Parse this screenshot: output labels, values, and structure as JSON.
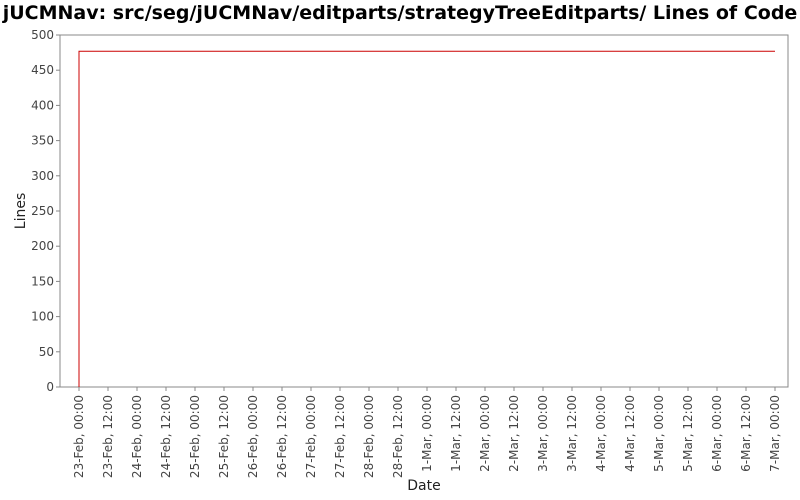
{
  "chart_data": {
    "type": "line",
    "title": "jUCMNav: src/seg/jUCMNav/editparts/strategyTreeEditparts/ Lines of Code",
    "xlabel": "Date",
    "ylabel": "Lines",
    "ylim": [
      0,
      500
    ],
    "yticks": [
      0,
      50,
      100,
      150,
      200,
      250,
      300,
      350,
      400,
      450,
      500
    ],
    "xticks": [
      "23-Feb, 00:00",
      "23-Feb, 12:00",
      "24-Feb, 00:00",
      "24-Feb, 12:00",
      "25-Feb, 00:00",
      "25-Feb, 12:00",
      "26-Feb, 00:00",
      "26-Feb, 12:00",
      "27-Feb, 00:00",
      "27-Feb, 12:00",
      "28-Feb, 00:00",
      "28-Feb, 12:00",
      "1-Mar, 00:00",
      "1-Mar, 12:00",
      "2-Mar, 00:00",
      "2-Mar, 12:00",
      "3-Mar, 00:00",
      "3-Mar, 12:00",
      "4-Mar, 00:00",
      "4-Mar, 12:00",
      "5-Mar, 00:00",
      "5-Mar, 12:00",
      "6-Mar, 00:00",
      "6-Mar, 12:00",
      "7-Mar, 00:00"
    ],
    "series": [
      {
        "color": "#cc0000",
        "points": [
          {
            "x": "23-Feb, 00:00",
            "y": 0
          },
          {
            "x": "23-Feb, 00:00",
            "y": 477
          },
          {
            "x": "7-Mar, 00:00",
            "y": 477
          }
        ]
      }
    ],
    "grid": false,
    "legend": "none"
  }
}
